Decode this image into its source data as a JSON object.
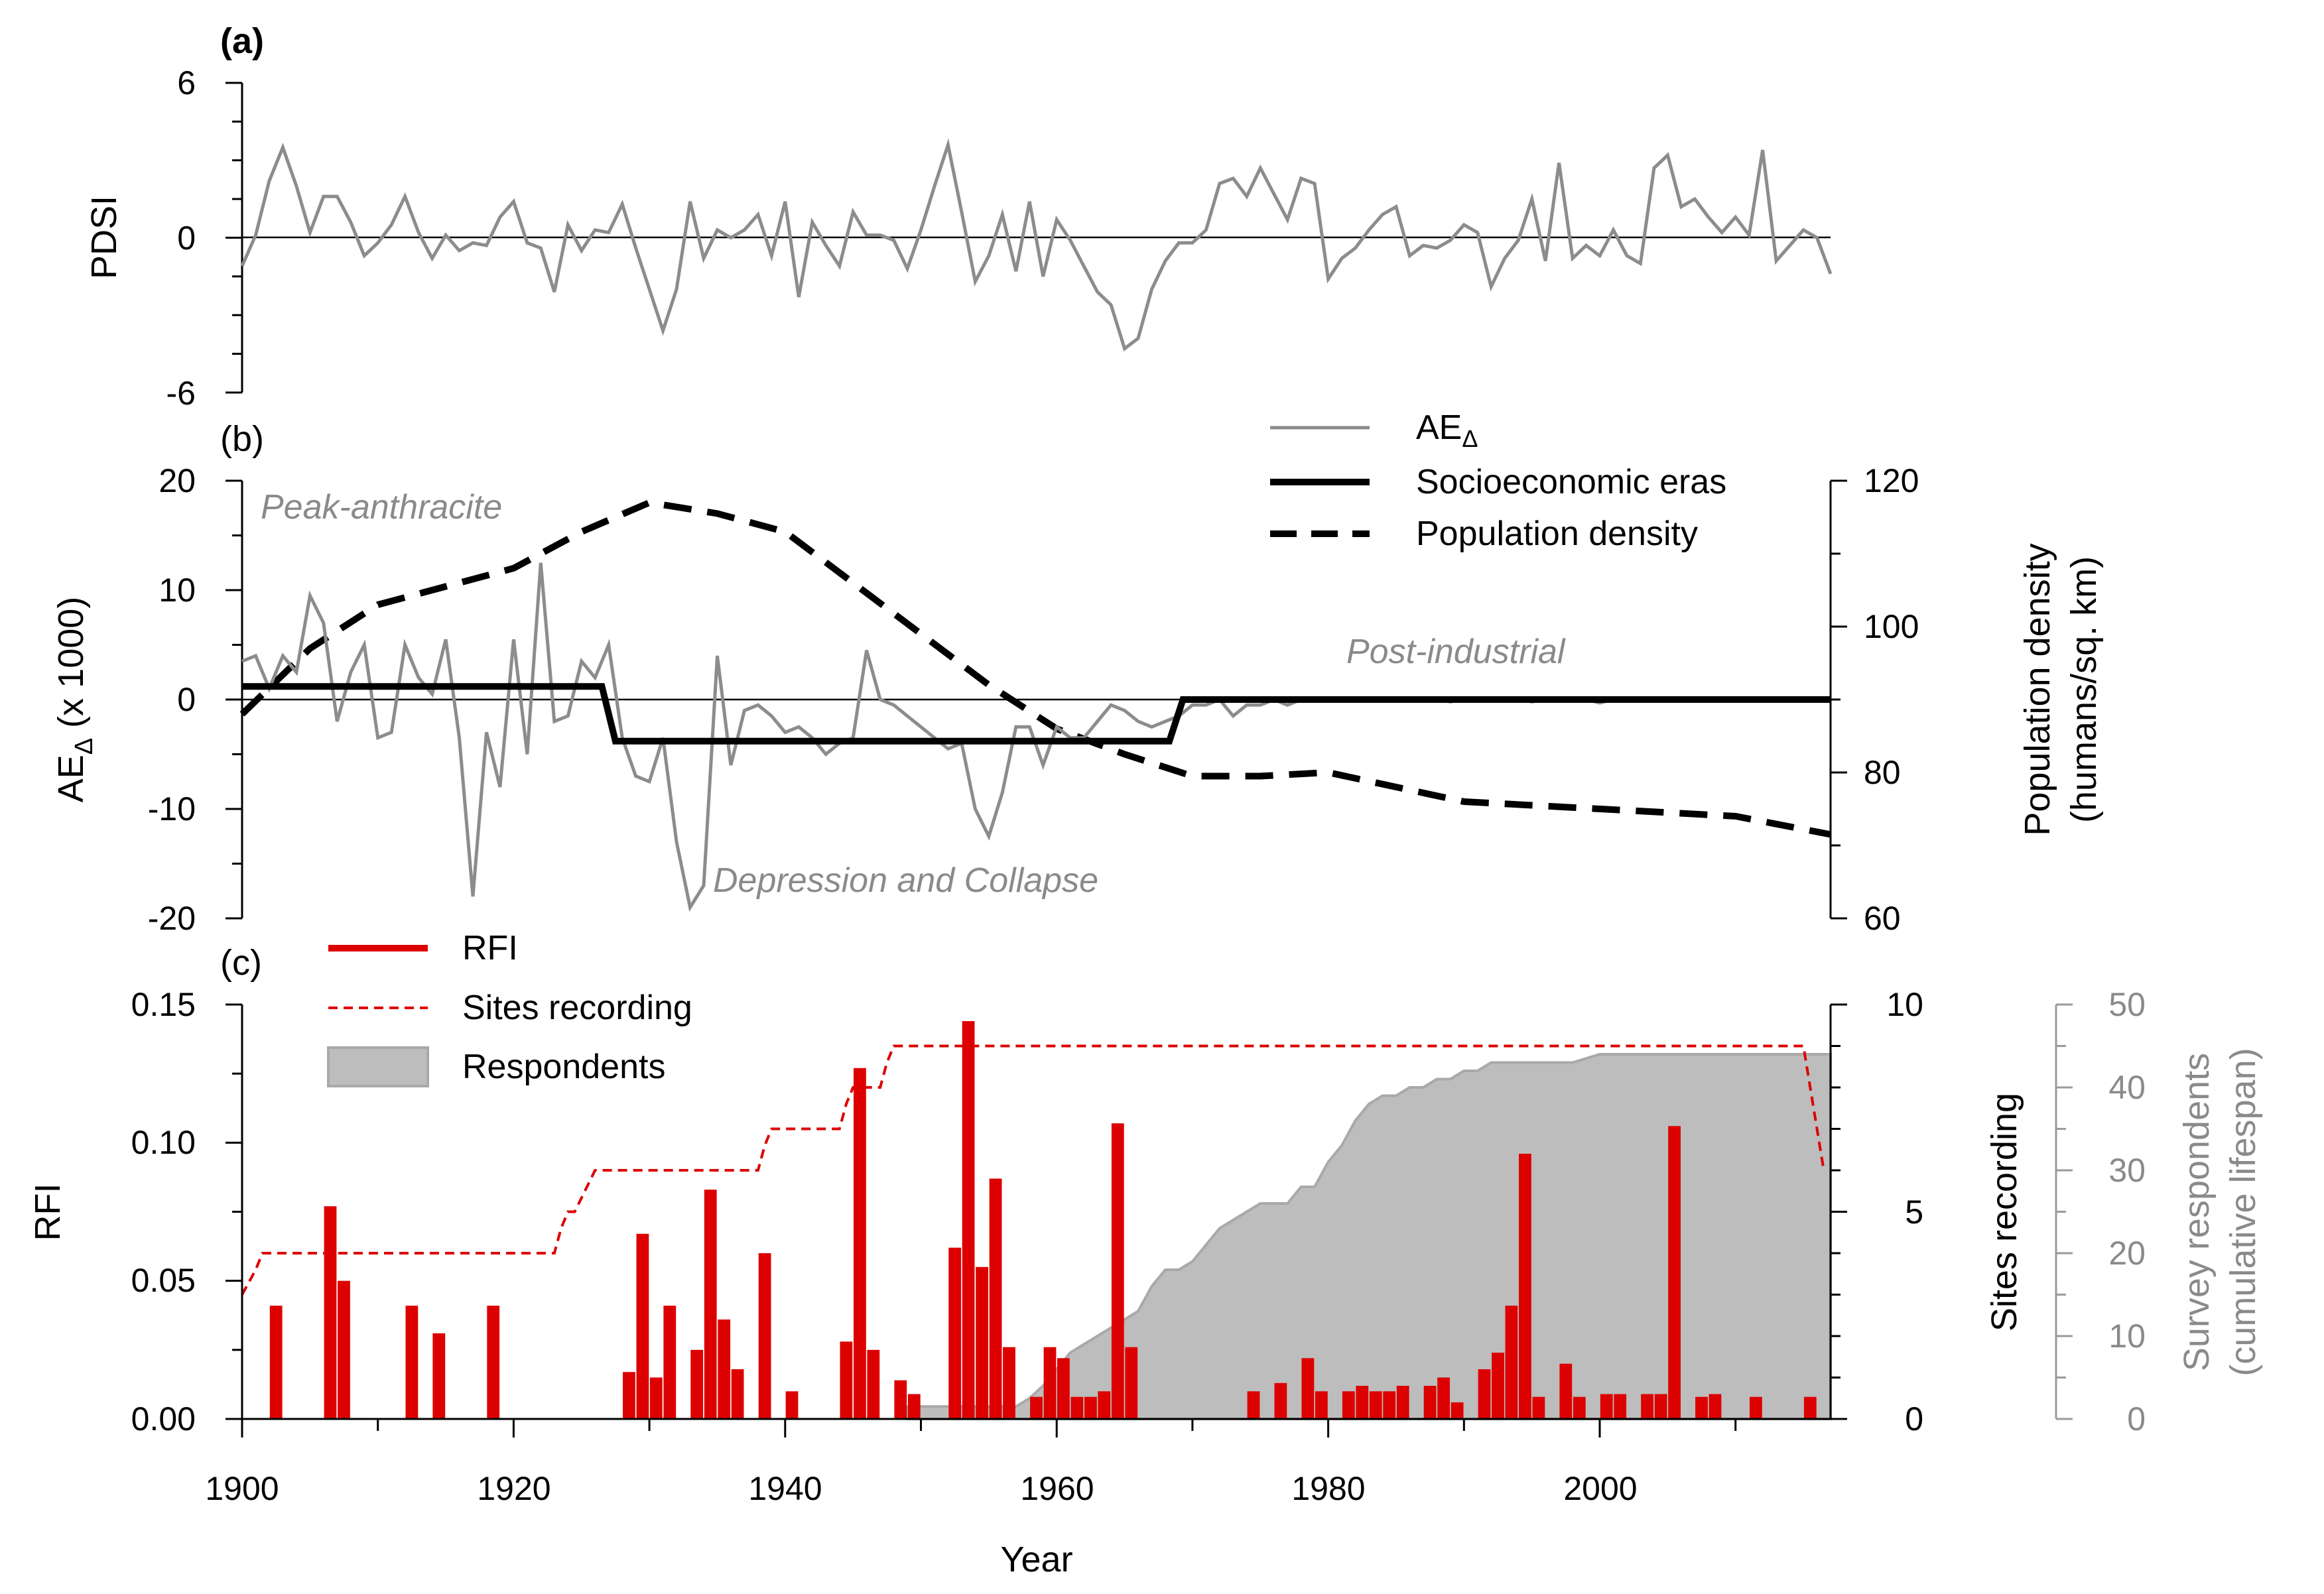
{
  "chart_data": [
    {
      "panel": "(a)",
      "type": "line",
      "ylabel": "PDSI",
      "ylim": [
        -6,
        6
      ],
      "yticks": [
        "6",
        "0",
        "-6"
      ],
      "zero_line": true,
      "series": [
        {
          "name": "PDSI",
          "color": "#8c8c8c",
          "x_start": 1900,
          "values": [
            -1.1,
            0.1,
            2.2,
            3.5,
            2.0,
            0.2,
            1.6,
            1.6,
            0.6,
            -0.7,
            -0.2,
            0.5,
            1.6,
            0.2,
            -0.8,
            0.1,
            -0.5,
            -0.2,
            -0.3,
            0.8,
            1.4,
            -0.2,
            -0.4,
            -2.1,
            0.5,
            -0.5,
            0.3,
            0.2,
            1.3,
            -0.4,
            -2.0,
            -3.6,
            -2.0,
            1.4,
            -0.8,
            0.3,
            0.0,
            0.3,
            0.9,
            -0.7,
            1.4,
            -2.3,
            0.6,
            -0.3,
            -1.1,
            1.0,
            0.1,
            0.1,
            -0.1,
            -1.2,
            0.3,
            2.0,
            3.6,
            1.0,
            -1.7,
            -0.7,
            0.9,
            -1.3,
            1.4,
            -1.5,
            0.7,
            -0.1,
            -1.1,
            -2.1,
            -2.6,
            -4.3,
            -3.9,
            -2.0,
            -0.9,
            -0.2,
            -0.2,
            0.3,
            2.1,
            2.3,
            1.6,
            2.7,
            1.7,
            0.7,
            2.3,
            2.1,
            -1.6,
            -0.8,
            -0.4,
            0.3,
            0.9,
            1.2,
            -0.7,
            -0.3,
            -0.4,
            -0.1,
            0.5,
            0.2,
            -1.9,
            -0.8,
            -0.1,
            1.5,
            -0.9,
            2.9,
            -0.8,
            -0.3,
            -0.7,
            0.3,
            -0.7,
            -1.0,
            2.7,
            3.2,
            1.2,
            1.5,
            0.8,
            0.2,
            0.8,
            0.1,
            3.4,
            -0.9,
            -0.3,
            0.3,
            0.0,
            -1.4
          ]
        }
      ]
    },
    {
      "panel": "(b)",
      "type": "line",
      "ylabel": "AE",
      "ylabel_sub": "Δ",
      "ylabel_suffix": " (x 1000)",
      "ylim": [
        -20,
        20
      ],
      "yticks": [
        "20",
        "10",
        "0",
        "-10",
        "-20"
      ],
      "y2label_line1": "Population density",
      "y2label_line2": "(humans/sq. km)",
      "y2lim": [
        60,
        120
      ],
      "y2ticks": [
        "120",
        "100",
        "80",
        "60"
      ],
      "legend": {
        "items": [
          {
            "label": "AE",
            "sub": "Δ",
            "style": "grey"
          },
          {
            "label": "Socioeconomic eras",
            "style": "black"
          },
          {
            "label": "Population density",
            "style": "dashed"
          }
        ]
      },
      "annotations": [
        "Peak-anthracite",
        "Post-industrial",
        "Depression and Collapse"
      ],
      "series": [
        {
          "name": "AEΔ",
          "color": "#8c8c8c",
          "x_start": 1900,
          "values": [
            3.5,
            4.0,
            1.0,
            4.0,
            2.5,
            9.5,
            7.0,
            -2.0,
            2.5,
            5.0,
            -3.5,
            -3.0,
            5.0,
            2.0,
            0.5,
            5.5,
            -3.5,
            -18.0,
            -3.0,
            -8.0,
            5.5,
            -5.0,
            12.5,
            -2.0,
            -1.5,
            3.5,
            2.0,
            5.0,
            -3.5,
            -7.0,
            -7.5,
            -3.5,
            -13.0,
            -19.0,
            -17.0,
            4.0,
            -6.0,
            -1.0,
            -0.5,
            -1.5,
            -3.0,
            -2.5,
            -3.5,
            -5.0,
            -4.0,
            -3.5,
            4.5,
            0.0,
            -0.5,
            -1.5,
            -2.5,
            -3.5,
            -4.5,
            -4.0,
            -10.0,
            -12.5,
            -8.5,
            -2.5,
            -2.5,
            -6.0,
            -2.5,
            -3.5,
            -3.5,
            -2.0,
            -0.5,
            -1.0,
            -2.0,
            -2.5,
            -2.0,
            -1.5,
            -0.5,
            -0.5,
            0.0,
            -1.5,
            -0.5,
            -0.5,
            0.0,
            -0.5,
            0.0,
            0.0,
            0.0,
            0.0,
            0.0,
            0.0,
            0.0,
            0.0,
            0.0,
            0.0,
            0.0,
            -0.2,
            0.0,
            0.0,
            0.0,
            0.0,
            0.0,
            -0.2,
            0.0,
            0.0,
            0.0,
            0.0,
            -0.3,
            0.0,
            0.0,
            0.0,
            0.0,
            0.0,
            0.0,
            0.0,
            0.0,
            0.0,
            0.0,
            0.0,
            0.0,
            0.0,
            0.0,
            0.0,
            0.0
          ]
        },
        {
          "name": "Socioeconomic eras",
          "color": "#000000",
          "x": [
            1900,
            1926.5,
            1927.5,
            1968.3,
            1969.3,
            2017
          ],
          "values": [
            1.2,
            1.2,
            -3.8,
            -3.8,
            0.0,
            0.0
          ]
        },
        {
          "name": "Population density",
          "axis": "right",
          "color": "#000000",
          "x": [
            1900,
            1905,
            1910,
            1915,
            1920,
            1925,
            1930,
            1935,
            1940,
            1945,
            1950,
            1955,
            1960,
            1965,
            1970,
            1975,
            1980,
            1985,
            1990,
            1995,
            2000,
            2005,
            2010,
            2017
          ],
          "values": [
            88,
            97,
            103,
            105.5,
            108,
            113,
            117,
            115.5,
            113,
            106,
            99,
            92,
            86,
            82.5,
            79.5,
            79.5,
            80,
            78,
            76,
            75.5,
            75,
            74.5,
            74,
            71.5
          ]
        }
      ]
    },
    {
      "panel": "(c)",
      "type": "bar",
      "xlabel": "Year",
      "xlim": [
        1900,
        2017
      ],
      "xticks": [
        "1900",
        "1920",
        "1940",
        "1960",
        "1980",
        "2000"
      ],
      "ylabel": "RFI",
      "ylim": [
        0,
        0.15
      ],
      "yticks": [
        "0.15",
        "0.10",
        "0.05",
        "0.00"
      ],
      "y2label": "Sites recording",
      "y2lim": [
        0,
        10
      ],
      "y2ticks": [
        "10",
        "5",
        "0"
      ],
      "y3label_line1": "Survey respondents",
      "y3label_line2": "(cumulative lifespan)",
      "y3lim": [
        0,
        50
      ],
      "y3ticks": [
        "50",
        "40",
        "30",
        "20",
        "10",
        "0"
      ],
      "legend": {
        "items": [
          {
            "label": "RFI",
            "style": "red-line"
          },
          {
            "label": "Sites recording",
            "style": "red-dash"
          },
          {
            "label": "Respondents",
            "style": "grey-box"
          }
        ]
      },
      "series": [
        {
          "name": "RFI",
          "color": "#dd0000",
          "x": [
            1902,
            1906,
            1907,
            1912,
            1914,
            1918,
            1928,
            1929,
            1930,
            1931,
            1933,
            1934,
            1935,
            1936,
            1938,
            1940,
            1944,
            1945,
            1946,
            1948,
            1949,
            1952,
            1953,
            1954,
            1955,
            1956,
            1958,
            1959,
            1960,
            1961,
            1962,
            1963,
            1964,
            1965,
            1974,
            1976,
            1978,
            1979,
            1981,
            1982,
            1983,
            1984,
            1985,
            1987,
            1988,
            1989,
            1991,
            1992,
            1993,
            1994,
            1995,
            1997,
            1998,
            2000,
            2001,
            2003,
            2004,
            2005,
            2007,
            2008,
            2011,
            2015
          ],
          "values": [
            0.041,
            0.077,
            0.05,
            0.041,
            0.031,
            0.041,
            0.017,
            0.067,
            0.015,
            0.041,
            0.025,
            0.083,
            0.036,
            0.018,
            0.06,
            0.01,
            0.028,
            0.127,
            0.025,
            0.014,
            0.009,
            0.062,
            0.144,
            0.055,
            0.087,
            0.026,
            0.008,
            0.026,
            0.022,
            0.008,
            0.008,
            0.01,
            0.107,
            0.026,
            0.01,
            0.013,
            0.022,
            0.01,
            0.01,
            0.012,
            0.01,
            0.01,
            0.012,
            0.012,
            0.015,
            0.006,
            0.018,
            0.024,
            0.041,
            0.096,
            0.008,
            0.02,
            0.008,
            0.009,
            0.009,
            0.009,
            0.009,
            0.106,
            0.008,
            0.009,
            0.008,
            0.008
          ]
        },
        {
          "name": "Sites recording",
          "axis": "right",
          "color": "#dd0000",
          "x": [
            1900,
            1901,
            1901.5,
            1923,
            1923.5,
            1924,
            1924.5,
            1926,
            1926.5,
            1938,
            1938.5,
            1939,
            1939.5,
            1944,
            1944.5,
            1945,
            1945.5,
            1947,
            1947.5,
            1948,
            1948.5,
            2015,
            2015.5,
            2016.5
          ],
          "values": [
            3,
            3.6,
            4,
            4,
            4.6,
            5,
            5,
            6,
            6,
            6,
            6.6,
            7,
            7,
            7,
            7.6,
            8,
            8,
            8,
            8.6,
            9,
            9,
            9,
            8,
            6
          ]
        },
        {
          "name": "Respondents",
          "axis": "right2",
          "color": "#bdbdbd",
          "x": [
            1949,
            1957,
            1958,
            1959,
            1960,
            1961,
            1962,
            1963,
            1964,
            1965,
            1966,
            1967,
            1968,
            1969,
            1970,
            1971,
            1972,
            1973,
            1974,
            1975,
            1976,
            1977,
            1978,
            1979,
            1980,
            1981,
            1982,
            1983,
            1984,
            1985,
            1986,
            1987,
            1988,
            1989,
            1990,
            1991,
            1992,
            1993,
            1994,
            1995,
            1996,
            1997,
            1998,
            1999,
            2000,
            2001,
            2002,
            2003,
            2004,
            2005,
            2006,
            2007,
            2008,
            2009,
            2010,
            2011,
            2012,
            2013,
            2014,
            2015,
            2016,
            2017
          ],
          "values": [
            1.5,
            1.5,
            2.5,
            4,
            6,
            8,
            9,
            10,
            11,
            12,
            13,
            16,
            18,
            18,
            19,
            21,
            23,
            24,
            25,
            26,
            26,
            26,
            28,
            28,
            31,
            33,
            36,
            38,
            39,
            39,
            40,
            40,
            41,
            41,
            42,
            42,
            43,
            43,
            43,
            43,
            43,
            43,
            43,
            43.5,
            44,
            44,
            44,
            44,
            44,
            44,
            44,
            44,
            44,
            44,
            44,
            44,
            44,
            44,
            44,
            44,
            44,
            44
          ]
        }
      ]
    }
  ]
}
